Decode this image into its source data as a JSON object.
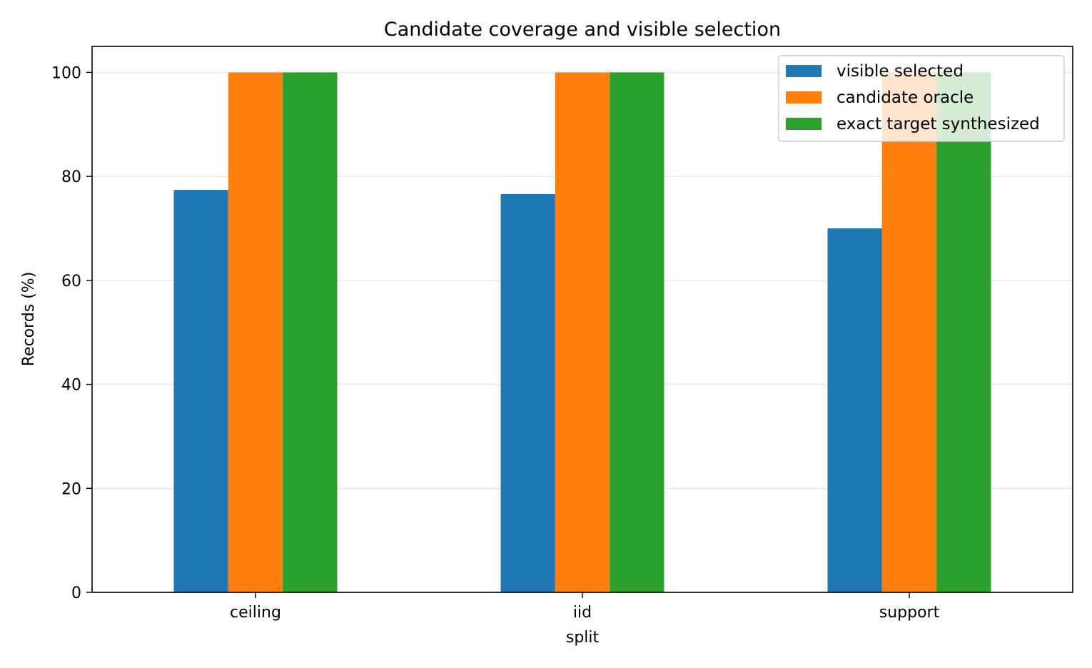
{
  "chart_data": {
    "type": "bar",
    "title": "Candidate coverage and visible selection",
    "xlabel": "split",
    "ylabel": "Records (%)",
    "categories": [
      "ceiling",
      "iid",
      "support"
    ],
    "series": [
      {
        "name": "visible selected",
        "color": "#1f77b4",
        "values": [
          77.4,
          76.6,
          70.0
        ]
      },
      {
        "name": "candidate oracle",
        "color": "#ff7f0e",
        "values": [
          100.0,
          100.0,
          100.0
        ]
      },
      {
        "name": "exact target synthesized",
        "color": "#2ca02c",
        "values": [
          100.0,
          100.0,
          100.0
        ]
      }
    ],
    "ylim": [
      0,
      105
    ],
    "yticks": [
      0,
      20,
      40,
      60,
      80,
      100
    ],
    "grid": "y",
    "legend": "top-right"
  }
}
